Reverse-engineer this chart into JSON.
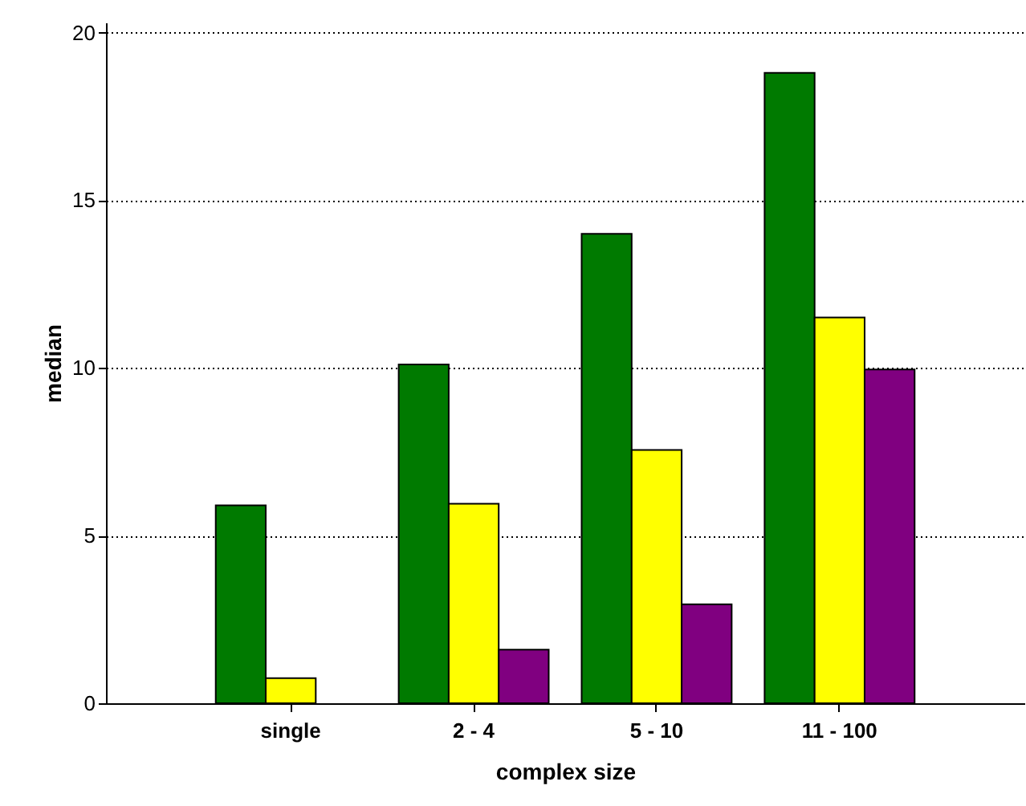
{
  "chart_data": {
    "type": "bar",
    "xlabel": "complex size",
    "ylabel": "median",
    "categories": [
      "single",
      "2 - 4",
      "5 - 10",
      "11 - 100"
    ],
    "series": [
      {
        "color": "#007a00",
        "values": [
          5.9,
          10.1,
          14.0,
          18.8
        ]
      },
      {
        "color": "#ffff00",
        "values": [
          0.75,
          5.95,
          7.55,
          11.5
        ]
      },
      {
        "color": "#800080",
        "values": [
          null,
          1.6,
          2.95,
          9.95
        ]
      }
    ],
    "ylim": [
      0,
      20.3
    ],
    "yticks": [
      0,
      5,
      10,
      15,
      20
    ],
    "grid": "y"
  }
}
